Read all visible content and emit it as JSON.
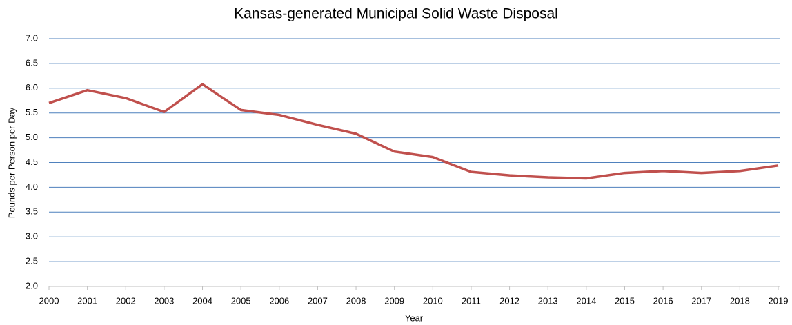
{
  "chart_data": {
    "type": "line",
    "title": "Kansas-generated Municipal Solid Waste Disposal",
    "xlabel": "Year",
    "ylabel": "Pounds per Person per Day",
    "x": [
      2000,
      2001,
      2002,
      2003,
      2004,
      2005,
      2006,
      2007,
      2008,
      2009,
      2010,
      2011,
      2012,
      2013,
      2014,
      2015,
      2016,
      2017,
      2018,
      2019
    ],
    "values": [
      5.7,
      5.96,
      5.8,
      5.52,
      6.08,
      5.56,
      5.46,
      5.26,
      5.08,
      4.72,
      4.61,
      4.31,
      4.24,
      4.2,
      4.18,
      4.29,
      4.33,
      4.29,
      4.33,
      4.44
    ],
    "color": "#c0504d",
    "grid_color": "#4f81bd",
    "grid": true,
    "xlim": [
      2000,
      2019
    ],
    "xticks": [
      2000,
      2001,
      2002,
      2003,
      2004,
      2005,
      2006,
      2007,
      2008,
      2009,
      2010,
      2011,
      2012,
      2013,
      2014,
      2015,
      2016,
      2017,
      2018,
      2019
    ],
    "ylim": [
      2,
      7
    ],
    "yticks": [
      {
        "value": 2,
        "label": "2.0"
      },
      2.5,
      {
        "value": 3,
        "label": "3.0"
      },
      3.5,
      {
        "value": 4,
        "label": "4.0"
      },
      4.5,
      {
        "value": 5,
        "label": "5.0"
      },
      5.5,
      {
        "value": 6,
        "label": "6.0"
      },
      6.5,
      {
        "value": 7,
        "label": "7.0"
      }
    ]
  }
}
